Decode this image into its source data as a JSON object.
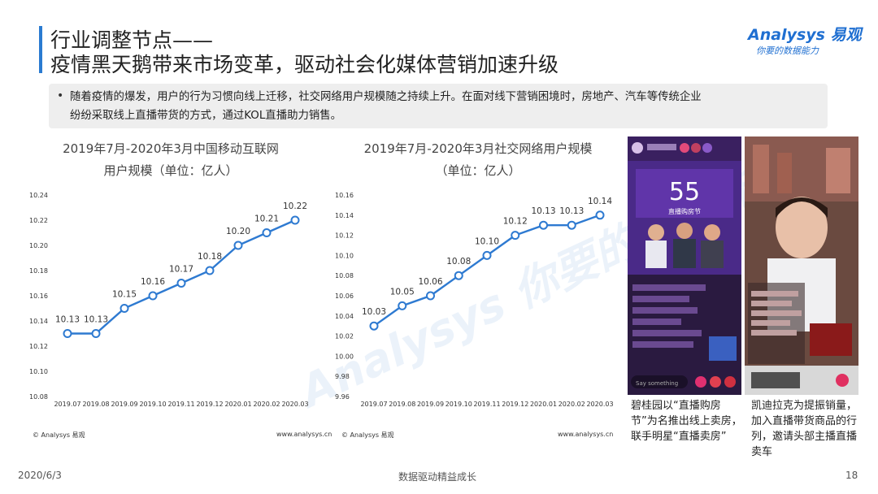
{
  "header": {
    "title_line1": "行业调整节点——",
    "title_line2": "疫情黑天鹅带来市场变革，驱动社会化媒体营销加速升级",
    "logo_brand": "Analysys 易观",
    "logo_slogan": "你要的数据能力"
  },
  "bullet": {
    "line1": "随着疫情的爆发，用户的行为习惯向线上迁移，社交网络用户规模随之持续上升。在面对线下营销困境时，房地产、汽车等传统企业",
    "line2": "纷纷采取线上直播带货的方式，通过KOL直播助力销售。"
  },
  "chart_data": [
    {
      "type": "line",
      "title": "2019年7月-2020年3月中国移动互联网",
      "subtitle": "用户规模（单位：亿人）",
      "categories": [
        "2019.07",
        "2019.08",
        "2019.09",
        "2019.10",
        "2019.11",
        "2019.12",
        "2020.01",
        "2020.02",
        "2020.03"
      ],
      "values": [
        10.13,
        10.13,
        10.15,
        10.16,
        10.17,
        10.18,
        10.2,
        10.21,
        10.22
      ],
      "ylim": [
        10.08,
        10.24
      ],
      "yticks": [
        "10.24",
        "10.22",
        "10.20",
        "10.18",
        "10.16",
        "10.14",
        "10.12",
        "10.10",
        "10.08"
      ],
      "color": "#2e7ad1",
      "source": "© Analysys 易观",
      "url": "www.analysys.cn"
    },
    {
      "type": "line",
      "title": "2019年7月-2020年3月社交网络用户规模",
      "subtitle": "（单位：亿人）",
      "categories": [
        "2019.07",
        "2019.08",
        "2019.09",
        "2019.10",
        "2019.11",
        "2019.12",
        "2020.01",
        "2020.02",
        "2020.03"
      ],
      "values": [
        10.03,
        10.05,
        10.06,
        10.08,
        10.1,
        10.12,
        10.13,
        10.13,
        10.14
      ],
      "ylim": [
        9.96,
        10.16
      ],
      "yticks": [
        "10.16",
        "10.14",
        "10.12",
        "10.10",
        "10.08",
        "10.06",
        "10.04",
        "10.02",
        "10.00",
        "9.98",
        "9.96"
      ],
      "color": "#2e7ad1",
      "source": "© Analysys 易观",
      "url": "www.analysys.cn"
    }
  ],
  "captions": {
    "left": "碧桂园以“直播购房节”为名推出线上卖房，联手明星“直播卖房”",
    "right": "凯迪拉克为提振销量，加入直播带货商品的行列，邀请头部主播直播卖车"
  },
  "photo_texts": {
    "left_banner": "55",
    "left_sub": "直播购房节",
    "left_input": "Say something"
  },
  "footer": {
    "date": "2020/6/3",
    "slogan": "数据驱动精益成长",
    "page": "18"
  },
  "watermark": "Analysys 你要的数据能力"
}
